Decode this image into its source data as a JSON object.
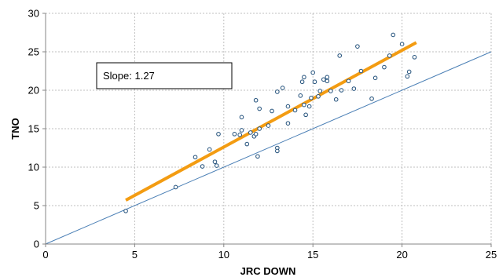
{
  "chart_data": {
    "type": "scatter",
    "xlabel": "JRC DOWN",
    "ylabel": "TNO",
    "xlim": [
      0,
      25
    ],
    "ylim": [
      0,
      30
    ],
    "xticks": [
      0,
      5,
      10,
      15,
      20,
      25
    ],
    "yticks": [
      0,
      5,
      10,
      15,
      20,
      25,
      30
    ],
    "grid": true,
    "annotation": "Slope: 1.27",
    "colors": {
      "points": "#1f4e79",
      "fit_line": "#f39c12",
      "identity_line": "#4a7fb5",
      "grid": "#bfbfbf"
    },
    "identity_line": {
      "x": [
        0,
        25
      ],
      "y": [
        0,
        25
      ]
    },
    "fit_line": {
      "x": [
        4.5,
        20.8
      ],
      "y": [
        5.7,
        26.2
      ]
    },
    "points": [
      [
        4.5,
        4.3
      ],
      [
        7.3,
        7.4
      ],
      [
        8.4,
        11.3
      ],
      [
        8.8,
        10.1
      ],
      [
        9.2,
        12.3
      ],
      [
        9.5,
        10.7
      ],
      [
        9.6,
        10.2
      ],
      [
        9.7,
        14.3
      ],
      [
        10.6,
        14.3
      ],
      [
        10.9,
        14.2
      ],
      [
        11.0,
        14.8
      ],
      [
        11.0,
        16.5
      ],
      [
        11.3,
        13.0
      ],
      [
        11.5,
        14.5
      ],
      [
        11.7,
        14.0
      ],
      [
        11.8,
        14.3
      ],
      [
        11.8,
        18.7
      ],
      [
        11.9,
        11.4
      ],
      [
        12.0,
        17.6
      ],
      [
        12.0,
        15.0
      ],
      [
        12.5,
        15.4
      ],
      [
        12.7,
        17.3
      ],
      [
        13.0,
        12.5
      ],
      [
        13.0,
        12.1
      ],
      [
        13.0,
        19.8
      ],
      [
        13.3,
        20.3
      ],
      [
        13.6,
        15.7
      ],
      [
        13.6,
        17.9
      ],
      [
        14.0,
        17.4
      ],
      [
        14.3,
        19.3
      ],
      [
        14.4,
        21.1
      ],
      [
        14.5,
        18.1
      ],
      [
        14.5,
        21.7
      ],
      [
        14.6,
        16.8
      ],
      [
        14.8,
        17.9
      ],
      [
        14.9,
        19.0
      ],
      [
        15.0,
        22.3
      ],
      [
        15.1,
        21.1
      ],
      [
        15.3,
        19.2
      ],
      [
        15.4,
        19.9
      ],
      [
        15.6,
        21.4
      ],
      [
        15.8,
        21.2
      ],
      [
        15.8,
        21.7
      ],
      [
        16.0,
        19.9
      ],
      [
        16.3,
        18.8
      ],
      [
        16.5,
        24.5
      ],
      [
        16.6,
        20.0
      ],
      [
        17.0,
        21.2
      ],
      [
        17.3,
        20.2
      ],
      [
        17.5,
        25.7
      ],
      [
        17.7,
        22.5
      ],
      [
        18.3,
        18.9
      ],
      [
        18.5,
        21.6
      ],
      [
        19.0,
        23.0
      ],
      [
        19.3,
        24.5
      ],
      [
        19.5,
        27.2
      ],
      [
        20.0,
        26.0
      ],
      [
        20.3,
        21.8
      ],
      [
        20.4,
        22.4
      ],
      [
        20.7,
        24.3
      ]
    ]
  }
}
